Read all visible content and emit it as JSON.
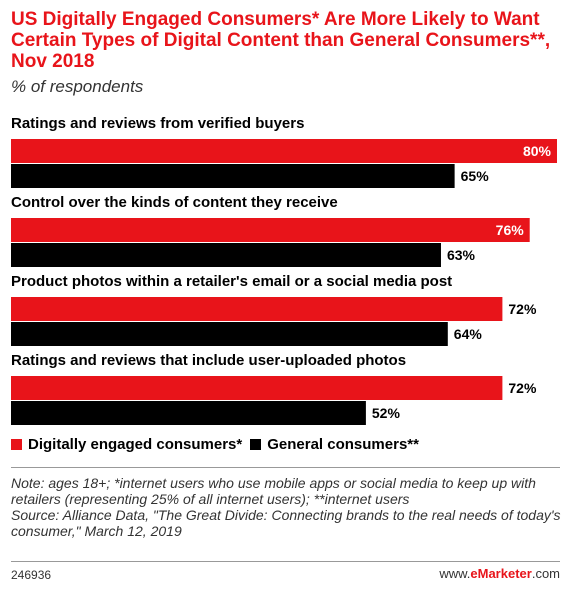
{
  "header": {
    "title": "US Digitally Engaged Consumers* Are More Likely to Want Certain Types of Digital Content than General Consumers**, Nov 2018",
    "subtitle": "% of respondents"
  },
  "legend": {
    "series_a": "Digitally engaged consumers*",
    "series_b": "General consumers**"
  },
  "colors": {
    "series_a": "#e8141a",
    "series_b": "#000000"
  },
  "notes": {
    "text": "Note: ages 18+; *internet users who use mobile apps or social media to keep up with retailers (representing 25% of all internet users); **internet users",
    "source": "Source: Alliance Data, \"The Great Divide: Connecting brands to the real needs of today's consumer,\" March 12, 2019"
  },
  "footer": {
    "chart_id": "246936",
    "brand_prefix": "www.",
    "brand_name": "eMarketer",
    "brand_suffix": ".com"
  },
  "chart_data": {
    "type": "bar",
    "orientation": "horizontal",
    "categories": [
      "Ratings and reviews from verified buyers",
      "Control over the kinds of content they receive",
      "Product photos within a retailer's email or a social media post",
      "Ratings and reviews that include user-uploaded photos"
    ],
    "series": [
      {
        "name": "Digitally engaged consumers*",
        "values": [
          80,
          76,
          72,
          72
        ],
        "labels": [
          "80%",
          "76%",
          "72%",
          "72%"
        ]
      },
      {
        "name": "General consumers**",
        "values": [
          65,
          63,
          64,
          52
        ],
        "labels": [
          "65%",
          "63%",
          "64%",
          "52%"
        ]
      }
    ],
    "xlim": [
      0,
      80
    ],
    "legend_position": "bottom-left",
    "grid": false
  }
}
